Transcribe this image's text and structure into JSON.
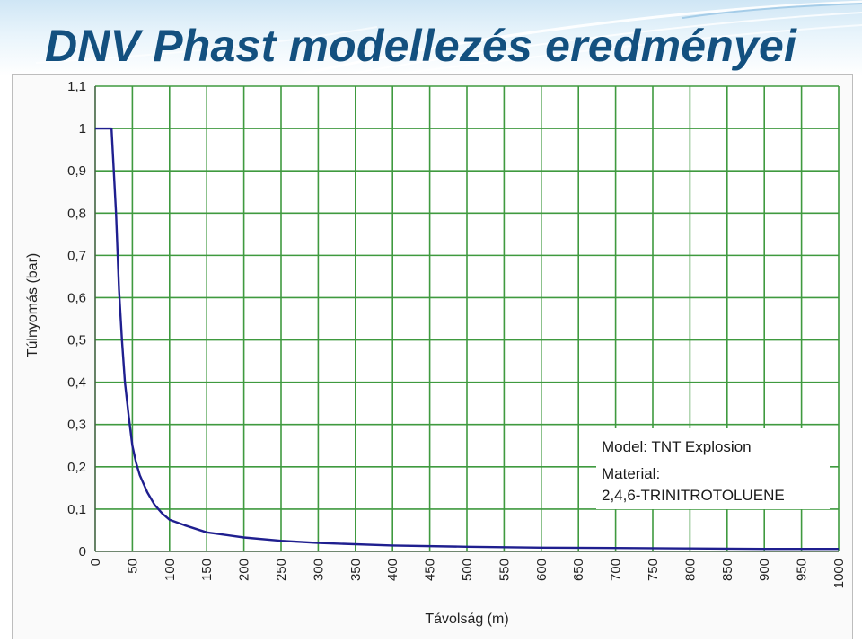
{
  "slide": {
    "title": "DNV Phast modellezés eredményei"
  },
  "colors": {
    "title": "#13507f",
    "grid": "#3f9a3f",
    "line": "#1f1f8f",
    "header_blue": "#cfe6f5"
  },
  "chart_data": {
    "type": "line",
    "xlabel": "Távolság (m)",
    "ylabel": "Túlnyomás (bar)",
    "xlim": [
      0,
      1000
    ],
    "ylim": [
      0,
      1.1
    ],
    "x_ticks": [
      "0",
      "50",
      "100",
      "150",
      "200",
      "250",
      "300",
      "350",
      "400",
      "450",
      "500",
      "550",
      "600",
      "650",
      "700",
      "750",
      "800",
      "850",
      "900",
      "950",
      "1000"
    ],
    "y_ticks": [
      "0",
      "0,1",
      "0,2",
      "0,3",
      "0,4",
      "0,5",
      "0,6",
      "0,7",
      "0,8",
      "0,9",
      "1",
      "1,1"
    ],
    "grid": true,
    "annotations": [
      "Model: TNT Explosion",
      "Material:",
      "2,4,6-TRINITROTOLUENE"
    ],
    "series": [
      {
        "x": [
          0,
          22,
          28,
          32,
          36,
          40,
          45,
          50,
          55,
          60,
          70,
          80,
          90,
          100,
          120,
          150,
          200,
          250,
          300,
          400,
          500,
          600,
          700,
          800,
          900,
          1000
        ],
        "y": [
          1.0,
          1.0,
          0.8,
          0.62,
          0.5,
          0.4,
          0.32,
          0.25,
          0.21,
          0.18,
          0.14,
          0.11,
          0.09,
          0.075,
          0.062,
          0.045,
          0.033,
          0.025,
          0.02,
          0.014,
          0.011,
          0.009,
          0.008,
          0.007,
          0.006,
          0.006
        ]
      }
    ]
  }
}
